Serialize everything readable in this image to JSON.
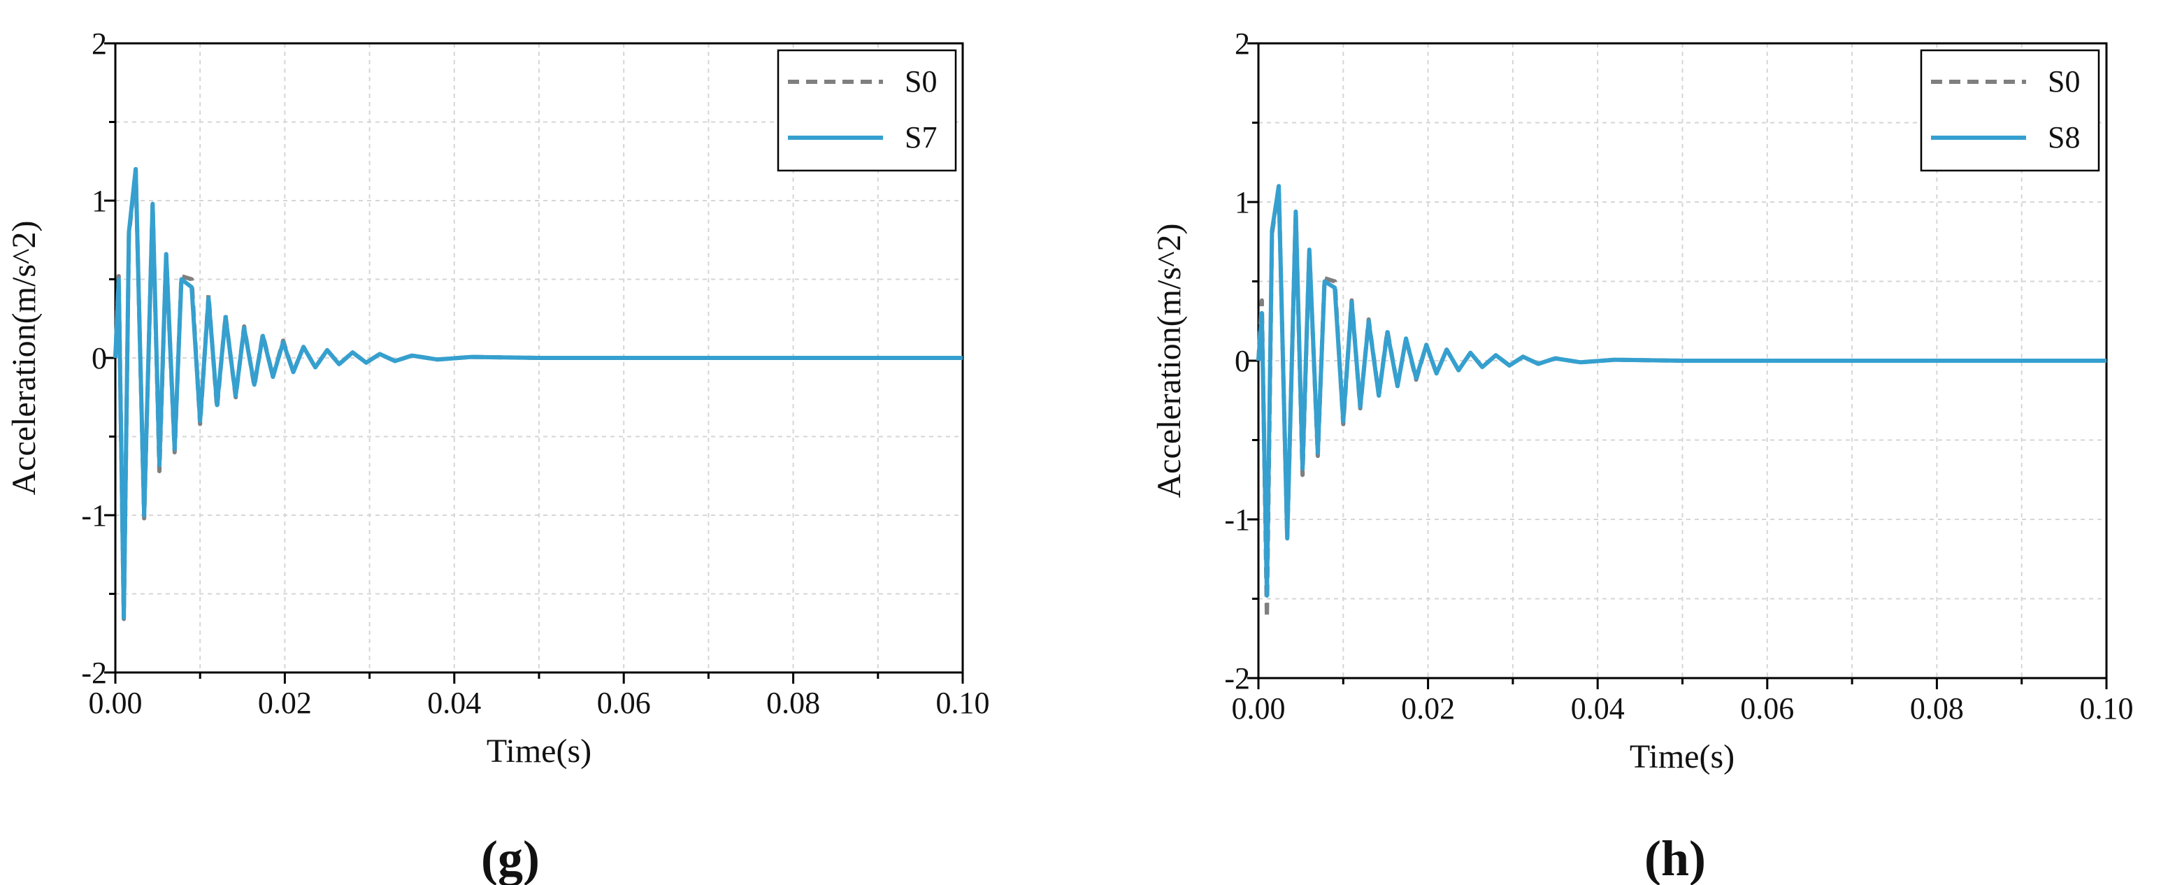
{
  "chart_data": [
    {
      "type": "line",
      "panel_label": "(g)",
      "title": "",
      "xlabel": "Time(s)",
      "ylabel": "Acceleration(m/s^2)",
      "xlim": [
        0,
        0.1
      ],
      "ylim": [
        -2,
        2
      ],
      "xticks": [
        "0.00",
        "0.02",
        "0.04",
        "0.06",
        "0.08",
        "0.10"
      ],
      "yticks": [
        "-2",
        "-1",
        "0",
        "1",
        "2"
      ],
      "grid": true,
      "legend_position": "top-right",
      "colors": {
        "S0": "#7f7f7f",
        "S7": "#35a0cf"
      },
      "series": [
        {
          "name": "S0",
          "style": "dashed",
          "x": [
            0.0,
            0.0004,
            0.001,
            0.0016,
            0.0024,
            0.0034,
            0.0044,
            0.0052,
            0.006,
            0.007,
            0.0078,
            0.009,
            0.01,
            0.011,
            0.012,
            0.013,
            0.0142,
            0.0152,
            0.0164,
            0.0174,
            0.0186,
            0.0198,
            0.021,
            0.0222,
            0.0236,
            0.025,
            0.0264,
            0.028,
            0.0296,
            0.0312,
            0.033,
            0.035,
            0.038,
            0.042,
            0.05,
            0.07,
            0.1
          ],
          "y": [
            0.0,
            0.52,
            -1.66,
            0.78,
            1.2,
            -1.02,
            0.98,
            -0.72,
            0.66,
            -0.6,
            0.52,
            0.5,
            -0.42,
            0.4,
            -0.32,
            0.27,
            -0.25,
            0.2,
            -0.18,
            0.15,
            -0.12,
            0.11,
            -0.09,
            0.07,
            -0.06,
            0.05,
            -0.04,
            0.035,
            -0.03,
            0.025,
            -0.02,
            0.015,
            -0.01,
            0.006,
            0.0,
            0.0,
            0.0
          ]
        },
        {
          "name": "S7",
          "style": "solid",
          "x": [
            0.0,
            0.0004,
            0.001,
            0.0016,
            0.0024,
            0.0034,
            0.0044,
            0.0052,
            0.006,
            0.007,
            0.0078,
            0.009,
            0.01,
            0.011,
            0.012,
            0.013,
            0.0142,
            0.0152,
            0.0164,
            0.0174,
            0.0186,
            0.0198,
            0.021,
            0.0222,
            0.0236,
            0.025,
            0.0264,
            0.028,
            0.0296,
            0.0312,
            0.033,
            0.035,
            0.038,
            0.042,
            0.05,
            0.07,
            0.1
          ],
          "y": [
            0.0,
            0.5,
            -1.65,
            0.8,
            1.2,
            -1.0,
            0.98,
            -0.68,
            0.66,
            -0.58,
            0.5,
            0.45,
            -0.4,
            0.38,
            -0.3,
            0.26,
            -0.24,
            0.19,
            -0.17,
            0.14,
            -0.12,
            0.1,
            -0.09,
            0.07,
            -0.06,
            0.05,
            -0.04,
            0.035,
            -0.03,
            0.025,
            -0.02,
            0.015,
            -0.01,
            0.006,
            0.0,
            0.0,
            0.0
          ]
        }
      ]
    },
    {
      "type": "line",
      "panel_label": "(h)",
      "title": "",
      "xlabel": "Time(s)",
      "ylabel": "Acceleration(m/s^2)",
      "xlim": [
        0,
        0.1
      ],
      "ylim": [
        -2,
        2
      ],
      "xticks": [
        "0.00",
        "0.02",
        "0.04",
        "0.06",
        "0.08",
        "0.10"
      ],
      "yticks": [
        "-2",
        "-1",
        "0",
        "1",
        "2"
      ],
      "grid": true,
      "legend_position": "top-right",
      "colors": {
        "S0": "#7f7f7f",
        "S8": "#35a0cf"
      },
      "series": [
        {
          "name": "S0",
          "style": "dashed",
          "x": [
            0.0,
            0.0004,
            0.001,
            0.0016,
            0.0024,
            0.0034,
            0.0044,
            0.0052,
            0.006,
            0.007,
            0.0078,
            0.009,
            0.01,
            0.011,
            0.012,
            0.013,
            0.0142,
            0.0152,
            0.0164,
            0.0174,
            0.0186,
            0.0198,
            0.021,
            0.0222,
            0.0236,
            0.025,
            0.0264,
            0.028,
            0.0296,
            0.0312,
            0.033,
            0.035,
            0.038,
            0.042,
            0.05,
            0.07,
            0.1
          ],
          "y": [
            0.0,
            0.38,
            -1.62,
            0.8,
            1.1,
            -1.12,
            0.94,
            -0.72,
            0.7,
            -0.6,
            0.52,
            0.5,
            -0.4,
            0.38,
            -0.3,
            0.26,
            -0.22,
            0.19,
            -0.16,
            0.14,
            -0.12,
            0.1,
            -0.08,
            0.07,
            -0.06,
            0.05,
            -0.04,
            0.035,
            -0.03,
            0.025,
            -0.02,
            0.015,
            -0.01,
            0.006,
            0.0,
            0.0,
            0.0
          ]
        },
        {
          "name": "S8",
          "style": "solid",
          "x": [
            0.0,
            0.0004,
            0.001,
            0.0016,
            0.0024,
            0.0034,
            0.0044,
            0.0052,
            0.006,
            0.007,
            0.0078,
            0.009,
            0.01,
            0.011,
            0.012,
            0.013,
            0.0142,
            0.0152,
            0.0164,
            0.0174,
            0.0186,
            0.0198,
            0.021,
            0.0222,
            0.0236,
            0.025,
            0.0264,
            0.028,
            0.0296,
            0.0312,
            0.033,
            0.035,
            0.038,
            0.042,
            0.05,
            0.07,
            0.1
          ],
          "y": [
            0.0,
            0.3,
            -1.48,
            0.82,
            1.1,
            -1.12,
            0.94,
            -0.68,
            0.7,
            -0.58,
            0.5,
            0.46,
            -0.38,
            0.37,
            -0.29,
            0.25,
            -0.22,
            0.18,
            -0.16,
            0.14,
            -0.11,
            0.1,
            -0.08,
            0.07,
            -0.06,
            0.05,
            -0.04,
            0.035,
            -0.03,
            0.025,
            -0.02,
            0.015,
            -0.01,
            0.006,
            0.0,
            0.0,
            0.0
          ]
        }
      ]
    }
  ]
}
